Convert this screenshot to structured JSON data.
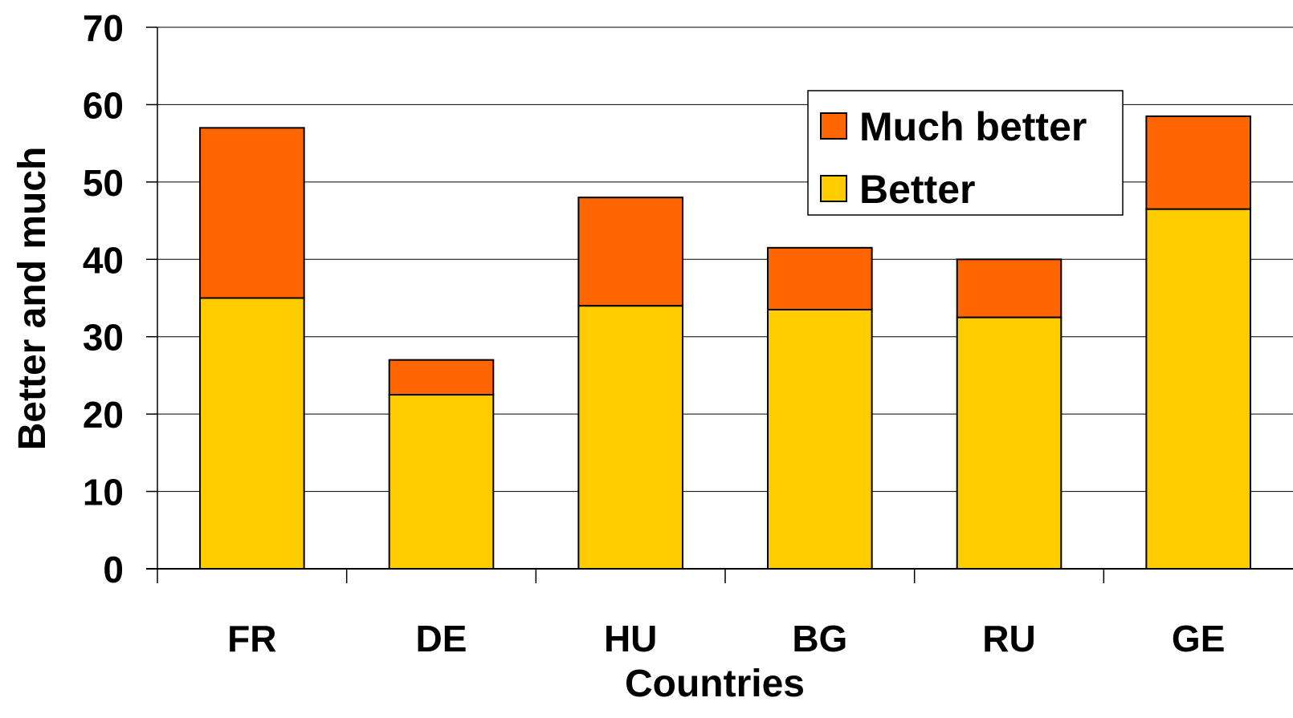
{
  "chart_data": {
    "type": "bar",
    "stacked": true,
    "categories": [
      "FR",
      "DE",
      "HU",
      "BG",
      "RU",
      "GE"
    ],
    "series": [
      {
        "name": "Better",
        "values": [
          35,
          22.5,
          34,
          33.5,
          32.5,
          46.5
        ],
        "color": "#FFCC00"
      },
      {
        "name": "Much better",
        "values": [
          22,
          4.5,
          14,
          8,
          7.5,
          12
        ],
        "color": "#FF6600"
      }
    ],
    "title": "",
    "xlabel": "Countries",
    "ylabel": "Better and much",
    "ylim": [
      0,
      70
    ],
    "yticks": [
      "0",
      "10",
      "20",
      "30",
      "40",
      "50",
      "60",
      "70"
    ],
    "grid": true,
    "legend_position": "top-right",
    "legend_order": [
      "Much better",
      "Better"
    ]
  }
}
